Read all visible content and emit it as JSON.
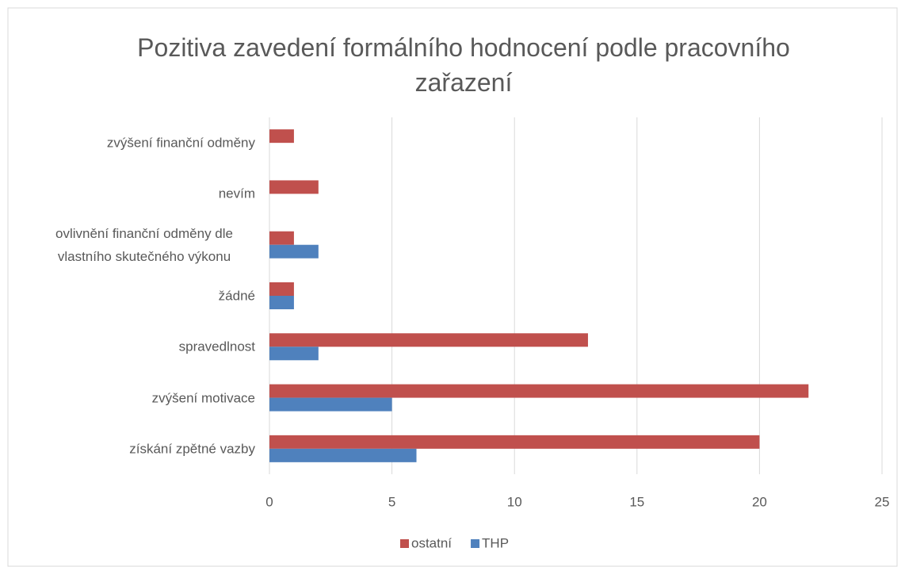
{
  "chart_data": {
    "type": "hbar",
    "title": "Pozitiva zavedení formálního hodnocení podle pracovního zařazení",
    "categories": [
      "získání zpětné vazby",
      "zvýšení motivace",
      "spravedlnost",
      "žádné",
      "ovlivnění finanční odměny dle vlastního skutečného výkonu",
      "nevím",
      "zvýšení finanční odměny"
    ],
    "series": [
      {
        "name": "ostatní",
        "color": "#c0504d",
        "values": [
          20,
          22,
          13,
          1,
          1,
          2,
          1
        ]
      },
      {
        "name": "THP",
        "color": "#4f81bd",
        "values": [
          6,
          5,
          2,
          1,
          2,
          0,
          0
        ]
      }
    ],
    "xlim": [
      0,
      25
    ],
    "xticks": [
      0,
      5,
      10,
      15,
      20,
      25
    ],
    "grid": true,
    "legend": "bottom"
  }
}
